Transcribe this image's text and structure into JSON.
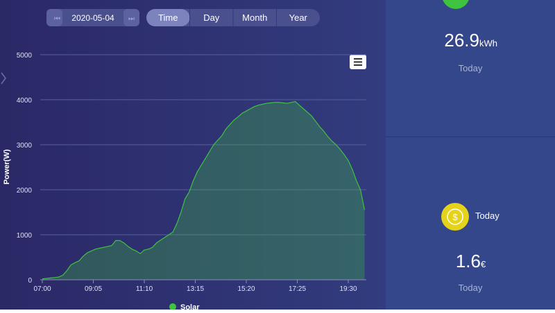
{
  "controls": {
    "date": "2020-05-04",
    "views": [
      "Time",
      "Day",
      "Month",
      "Year"
    ],
    "active": 0
  },
  "cards": [
    {
      "value": "26.9",
      "unit": "kWh",
      "caption": "Today"
    },
    {
      "label": "Today",
      "icon": "$",
      "value": "1.6",
      "unit": "€",
      "caption": "Today"
    }
  ],
  "chart_data": {
    "type": "area",
    "y_label": "Power(W)",
    "color": "#3ec43e",
    "x": [
      "07:00",
      "07:10",
      "07:20",
      "07:30",
      "07:40",
      "07:50",
      "08:00",
      "08:10",
      "08:20",
      "08:30",
      "08:40",
      "08:50",
      "09:00",
      "09:10",
      "09:20",
      "09:30",
      "09:40",
      "09:50",
      "10:00",
      "10:10",
      "10:20",
      "10:30",
      "10:40",
      "10:50",
      "11:00",
      "11:10",
      "11:20",
      "11:30",
      "11:40",
      "11:50",
      "12:00",
      "12:10",
      "12:20",
      "12:30",
      "12:40",
      "12:50",
      "13:00",
      "13:10",
      "13:20",
      "13:30",
      "13:40",
      "13:50",
      "14:00",
      "14:10",
      "14:20",
      "14:30",
      "14:40",
      "14:50",
      "15:00",
      "15:10",
      "15:20",
      "15:30",
      "15:40",
      "15:50",
      "16:00",
      "16:10",
      "16:20",
      "16:30",
      "16:40",
      "16:50",
      "17:00",
      "17:10",
      "17:20",
      "17:30",
      "17:40",
      "17:50",
      "18:00",
      "18:10",
      "18:20",
      "18:30",
      "18:40",
      "18:50",
      "19:00",
      "19:10",
      "19:20",
      "19:30",
      "19:40",
      "19:50",
      "20:00",
      "20:10"
    ],
    "series": [
      {
        "name": "Solar",
        "color": "#3ec43e",
        "values": [
          20,
          30,
          40,
          50,
          60,
          100,
          200,
          330,
          380,
          420,
          520,
          600,
          640,
          680,
          700,
          720,
          740,
          760,
          870,
          870,
          820,
          740,
          680,
          640,
          580,
          660,
          680,
          720,
          820,
          880,
          940,
          1000,
          1060,
          1250,
          1500,
          1800,
          1950,
          2200,
          2400,
          2550,
          2700,
          2850,
          3000,
          3100,
          3200,
          3350,
          3450,
          3550,
          3620,
          3700,
          3750,
          3800,
          3850,
          3880,
          3900,
          3920,
          3930,
          3940,
          3940,
          3930,
          3920,
          3940,
          3960,
          3880,
          3800,
          3720,
          3640,
          3520,
          3400,
          3300,
          3180,
          3080,
          3000,
          2900,
          2780,
          2650,
          2450,
          2200,
          2000,
          1550
        ]
      }
    ],
    "xticks": [
      "07:00",
      "09:05",
      "11:10",
      "13:15",
      "15:20",
      "17:25",
      "19:30"
    ],
    "ylim": [
      0,
      5000
    ],
    "yticks": [
      0,
      1000,
      2000,
      3000,
      4000,
      5000
    ],
    "grid": true
  }
}
